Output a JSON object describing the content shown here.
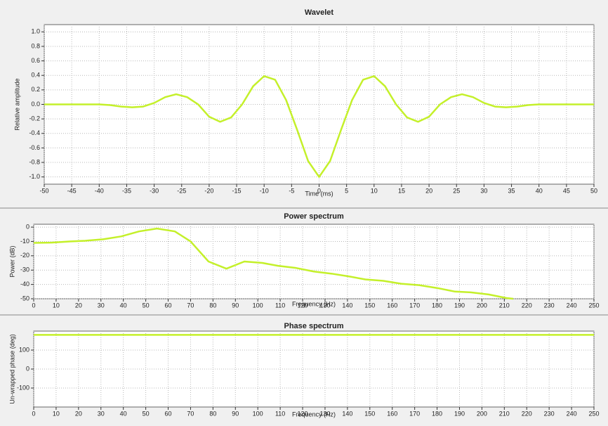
{
  "chart_data": [
    {
      "type": "line",
      "title": "Wavelet",
      "x_label": "Time (ms)",
      "y_label": "Relative amplitude",
      "x": [
        -50,
        -48,
        -46,
        -44,
        -42,
        -40,
        -38,
        -36,
        -34,
        -32,
        -30,
        -28,
        -26,
        -24,
        -22,
        -20,
        -18,
        -16,
        -14,
        -12,
        -10,
        -8,
        -6,
        -4,
        -2,
        0,
        2,
        4,
        6,
        8,
        10,
        12,
        14,
        16,
        18,
        20,
        22,
        24,
        26,
        28,
        30,
        32,
        34,
        36,
        38,
        40,
        42,
        44,
        46,
        48,
        50
      ],
      "series": [
        {
          "name": "Wavelet",
          "color": "#c4f02a",
          "values": [
            0,
            0,
            0,
            0,
            0,
            0,
            -0.01,
            -0.03,
            -0.04,
            -0.03,
            0.02,
            0.1,
            0.14,
            0.1,
            0,
            -0.17,
            -0.24,
            -0.18,
            0,
            0.25,
            0.39,
            0.34,
            0.06,
            -0.35,
            -0.78,
            -1.0,
            -0.78,
            -0.35,
            0.06,
            0.34,
            0.39,
            0.25,
            0,
            -0.18,
            -0.24,
            -0.17,
            0,
            0.1,
            0.14,
            0.1,
            0.02,
            -0.03,
            -0.04,
            -0.03,
            -0.01,
            0,
            0,
            0,
            0,
            0,
            0
          ]
        }
      ],
      "xlim": [
        -50,
        50
      ],
      "xticks": [
        -50,
        -45,
        -40,
        -35,
        -30,
        -25,
        -20,
        -15,
        -10,
        -5,
        0,
        5,
        10,
        15,
        20,
        25,
        30,
        35,
        40,
        45,
        50
      ],
      "ylim": [
        -1.1,
        1.1
      ],
      "yticks": [
        {
          "value": -1.0,
          "label": "-1.0"
        },
        {
          "value": -0.8,
          "label": "-0.8"
        },
        {
          "value": -0.6,
          "label": "-0.6"
        },
        {
          "value": -0.4,
          "label": "-0.4"
        },
        {
          "value": -0.2,
          "label": "-0.2"
        },
        {
          "value": 0,
          "label": "0.0"
        },
        {
          "value": 0.2,
          "label": "0.2"
        },
        {
          "value": 0.4,
          "label": "0.4"
        },
        {
          "value": 0.6,
          "label": "0.6"
        },
        {
          "value": 0.8,
          "label": "0.8"
        },
        {
          "value": 1.0,
          "label": "1.0"
        }
      ],
      "grid": true
    },
    {
      "type": "line",
      "title": "Power spectrum",
      "x_label": "Frequency (Hz)",
      "y_label": "Power (dB)",
      "x": [
        0,
        8,
        16,
        23,
        31,
        39,
        47,
        55,
        63,
        70,
        78,
        86,
        94,
        102,
        109,
        117,
        125,
        133,
        141,
        148,
        156,
        164,
        172,
        180,
        188,
        195,
        203,
        211,
        214
      ],
      "series": [
        {
          "name": "Power",
          "color": "#c4f02a",
          "values": [
            -11,
            -10.8,
            -10,
            -9.5,
            -8.5,
            -6.5,
            -3,
            -1,
            -3,
            -10,
            -24,
            -29,
            -24,
            -25,
            -27,
            -28.5,
            -31,
            -32.5,
            -34.5,
            -36.5,
            -37.5,
            -39.5,
            -40.5,
            -42.5,
            -45,
            -45.5,
            -47,
            -49.5,
            -50
          ]
        }
      ],
      "xlim": [
        0,
        250
      ],
      "xticks": [
        0,
        10,
        20,
        30,
        40,
        50,
        60,
        70,
        80,
        90,
        100,
        110,
        120,
        130,
        140,
        150,
        160,
        170,
        180,
        190,
        200,
        210,
        220,
        230,
        240,
        250
      ],
      "ylim": [
        -50,
        2
      ],
      "yticks": [
        -50,
        -40,
        -30,
        -20,
        -10,
        0
      ],
      "grid": true
    },
    {
      "type": "line",
      "title": "Phase spectrum",
      "x_label": "Frequency (Hz)",
      "y_label": "Un-wrapped phase (deg)",
      "x": [
        0,
        250
      ],
      "series": [
        {
          "name": "Phase",
          "color": "#c4f02a",
          "values": [
            180,
            180
          ]
        }
      ],
      "xlim": [
        0,
        250
      ],
      "xticks": [
        0,
        10,
        20,
        30,
        40,
        50,
        60,
        70,
        80,
        90,
        100,
        110,
        120,
        130,
        140,
        150,
        160,
        170,
        180,
        190,
        200,
        210,
        220,
        230,
        240,
        250
      ],
      "ylim": [
        -200,
        200
      ],
      "yticks": [
        -100,
        0,
        100
      ],
      "grid": true
    }
  ]
}
